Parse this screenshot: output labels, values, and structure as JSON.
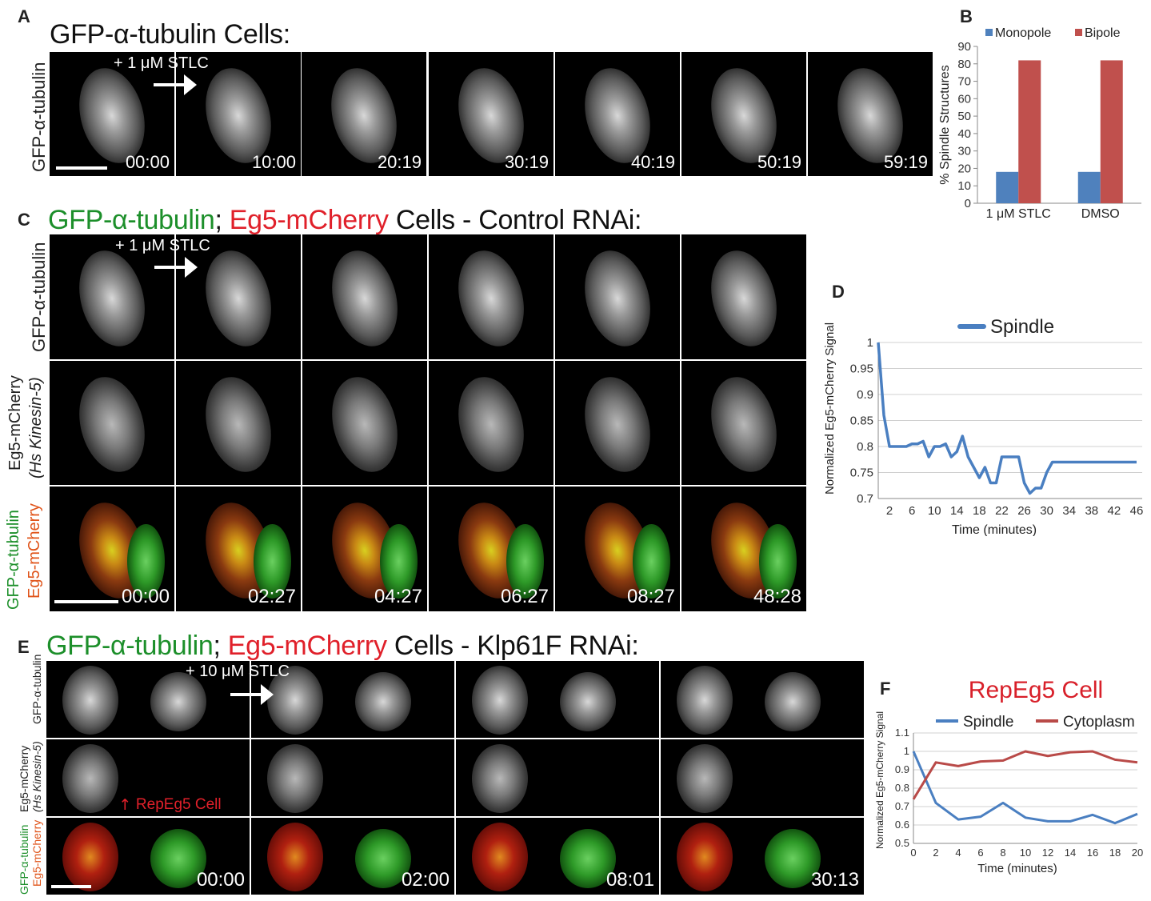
{
  "panelA": {
    "label": "A",
    "title": "GFP-α-tubulin Cells:",
    "row_label": "GFP-α-tubulin",
    "annotation": "+ 1 μM STLC",
    "timestamps": [
      "00:00",
      "10:00",
      "20:19",
      "30:19",
      "40:19",
      "50:19",
      "59:19"
    ]
  },
  "panelB": {
    "label": "B",
    "chart_data": {
      "type": "bar",
      "categories": [
        "1 μM STLC",
        "DMSO"
      ],
      "series": [
        {
          "name": "Monopole",
          "color": "#4f81bd",
          "values": [
            18,
            18
          ]
        },
        {
          "name": "Bipole",
          "color": "#c0504d",
          "values": [
            82,
            82
          ]
        }
      ],
      "ylabel": "% Spindle Structures",
      "ylim": [
        0,
        90
      ],
      "yticks": [
        0,
        10,
        20,
        30,
        40,
        50,
        60,
        70,
        80,
        90
      ],
      "legend": "top"
    }
  },
  "panelC": {
    "label": "C",
    "title_green": "GFP-α-tubulin",
    "title_sep": ";",
    "title_red": "Eg5-mCherry",
    "title_rest": "Cells - Control RNAi:",
    "row_labels": [
      "GFP-α-tubulin",
      "Eg5-mCherry",
      "(Hs Kinesin-5)",
      "GFP-α-tubulin",
      "Eg5-mCherry"
    ],
    "annotation": "+ 1 μM STLC",
    "timestamps": [
      "00:00",
      "02:27",
      "04:27",
      "06:27",
      "08:27",
      "48:28"
    ]
  },
  "panelD": {
    "label": "D",
    "chart_data": {
      "type": "line",
      "series": [
        {
          "name": "Spindle",
          "color": "#4a7fc1",
          "x": [
            0,
            1,
            2,
            3,
            4,
            5,
            6,
            7,
            8,
            9,
            10,
            11,
            12,
            13,
            14,
            15,
            16,
            17,
            18,
            19,
            20,
            21,
            22,
            23,
            24,
            25,
            26,
            27,
            28,
            29,
            30,
            31,
            32,
            33,
            34,
            35,
            36,
            37,
            38,
            39,
            40,
            41,
            42,
            43,
            44,
            45,
            46,
            47
          ],
          "y": [
            1.0,
            0.86,
            0.8,
            0.8,
            0.8,
            0.8,
            0.805,
            0.805,
            0.81,
            0.78,
            0.8,
            0.8,
            0.805,
            0.78,
            0.79,
            0.82,
            0.78,
            0.76,
            0.74,
            0.76,
            0.73,
            0.73,
            0.78,
            0.78,
            0.78,
            0.78,
            0.73,
            0.71,
            0.72,
            0.72,
            0.75,
            0.77,
            0.77,
            0.77,
            0.77,
            0.77,
            0.77,
            0.77,
            0.77,
            0.77,
            0.77,
            0.77,
            0.77,
            0.77,
            0.77,
            0.77,
            0.77,
            0.77
          ]
        }
      ],
      "xticks": [
        2,
        6,
        10,
        14,
        18,
        22,
        26,
        30,
        34,
        38,
        42,
        46
      ],
      "yticks": [
        0.7,
        0.75,
        0.8,
        0.85,
        0.9,
        0.95,
        1
      ],
      "ylim": [
        0.7,
        1.0
      ],
      "xlabel": "Time (minutes)",
      "ylabel": "Normalized Eg5-mCherry Signal",
      "legend": "top"
    }
  },
  "panelE": {
    "label": "E",
    "title_green": "GFP-α-tubulin",
    "title_sep": ";",
    "title_red": "Eg5-mCherry",
    "title_rest": "Cells - Klp61F RNAi:",
    "row_labels": [
      "GFP-α-tubulin",
      "Eg5-mCherry",
      "(Hs Kinesin-5)",
      "GFP-α-tubulin",
      "Eg5-mCherry"
    ],
    "annotation": "+ 10 μM STLC",
    "cell_annotation": "RepEg5 Cell",
    "timestamps": [
      "00:00",
      "02:00",
      "08:01",
      "30:13"
    ]
  },
  "panelF": {
    "label": "F",
    "chart_data": {
      "type": "line",
      "title": "RepEg5 Cell",
      "x": [
        0,
        2,
        4,
        6,
        8,
        10,
        12,
        14,
        16,
        18,
        20
      ],
      "series": [
        {
          "name": "Spindle",
          "color": "#4a7fc1",
          "values": [
            1.0,
            0.72,
            0.63,
            0.645,
            0.72,
            0.64,
            0.62,
            0.62,
            0.655,
            0.61,
            0.66
          ]
        },
        {
          "name": "Cytoplasm",
          "color": "#b94a48",
          "values": [
            0.74,
            0.94,
            0.92,
            0.945,
            0.95,
            1.0,
            0.975,
            0.995,
            1.0,
            0.955,
            0.94
          ]
        }
      ],
      "yticks": [
        0.5,
        0.6,
        0.7,
        0.8,
        0.9,
        1,
        1.1
      ],
      "ylim": [
        0.5,
        1.1
      ],
      "xlabel": "Time (minutes)",
      "ylabel": "Normalized Eg5-mCherry Signal",
      "legend": "top"
    }
  }
}
